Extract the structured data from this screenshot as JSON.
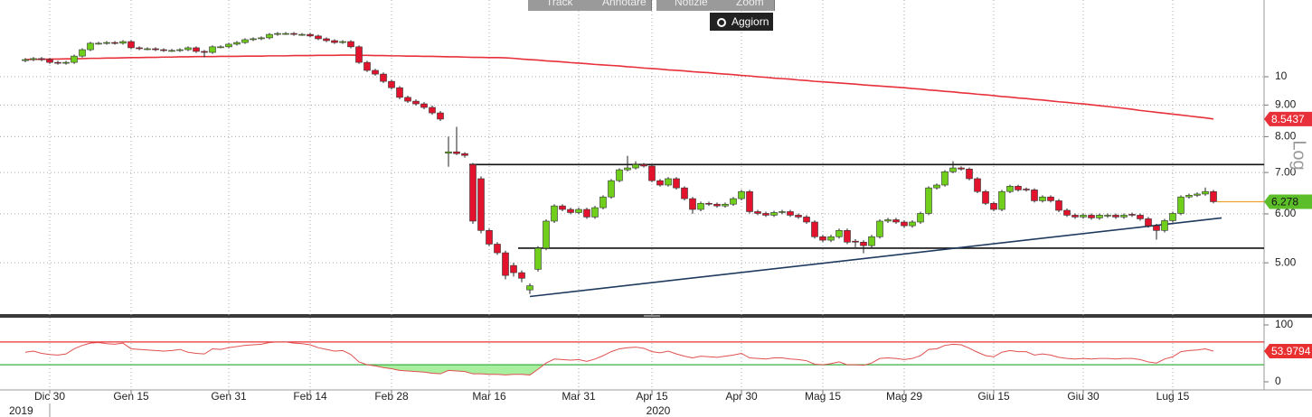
{
  "toolbar": {
    "buttons": [
      "Track",
      "Annotare",
      "Notizie",
      "Zoom"
    ],
    "refresh": "Aggiorn"
  },
  "scale_label": "Log",
  "chart_data": [
    {
      "type": "candlestick",
      "log_scale": true,
      "grid": true,
      "up_color": "#6fcf1a",
      "down_color": "#e3132d",
      "ylim": [
        4.13,
        13.31
      ],
      "yticks": [
        {
          "value": 5,
          "label": "5.00"
        },
        {
          "value": 6,
          "label": "6.00"
        },
        {
          "value": 7,
          "label": "7.00"
        },
        {
          "value": 8,
          "label": "8.00"
        },
        {
          "value": 9,
          "label": "9.00"
        },
        10
      ],
      "open": [
        10.62,
        10.66,
        10.7,
        10.66,
        10.55,
        10.52,
        10.55,
        10.8,
        11.06,
        11.33,
        11.33,
        11.36,
        11.33,
        11.4,
        11.14,
        11.1,
        11.1,
        11.06,
        11.03,
        11.03,
        11.06,
        11.14,
        10.99,
        10.95,
        11.18,
        11.18,
        11.29,
        11.36,
        11.48,
        11.52,
        11.56,
        11.71,
        11.75,
        11.75,
        11.71,
        11.71,
        11.64,
        11.52,
        11.44,
        11.36,
        11.4,
        11.18,
        10.55,
        10.24,
        10.1,
        9.83,
        9.6,
        9.26,
        9.13,
        9.04,
        8.92,
        8.74,
        7.52,
        7.56,
        7.51,
        7.21,
        6.84,
        5.64,
        5.36,
        5.19,
        4.95,
        4.82,
        4.52,
        4.88,
        5.28,
        5.84,
        6.18,
        6.1,
        6.03,
        6.1,
        5.93,
        6.14,
        6.39,
        6.79,
        7.07,
        7.12,
        7.21,
        7.17,
        6.79,
        6.68,
        6.84,
        6.61,
        6.35,
        6.1,
        6.24,
        6.22,
        6.18,
        6.22,
        6.35,
        6.52,
        6.05,
        6.01,
        5.97,
        6.03,
        6.05,
        5.97,
        5.93,
        5.82,
        5.51,
        5.44,
        5.51,
        5.64,
        5.42,
        5.4,
        5.33,
        5.51,
        5.84,
        5.87,
        5.82,
        5.74,
        5.82,
        6.01,
        6.61,
        6.68,
        7.02,
        7.12,
        7.09,
        6.84,
        6.52,
        6.24,
        6.1,
        6.52,
        6.65,
        6.58,
        6.56,
        6.3,
        6.39,
        6.3,
        6.08,
        5.97,
        5.93,
        5.97,
        5.91,
        5.95,
        5.97,
        5.93,
        5.99,
        5.97,
        5.89,
        5.74,
        5.64,
        5.85,
        6.01,
        6.39,
        6.43,
        6.46,
        6.52
      ],
      "high": [
        10.72,
        10.76,
        10.76,
        10.72,
        10.61,
        10.61,
        10.86,
        11.12,
        11.39,
        11.39,
        11.42,
        11.42,
        11.46,
        11.46,
        11.2,
        11.16,
        11.16,
        11.12,
        11.09,
        11.12,
        11.2,
        11.2,
        11.05,
        11.24,
        11.24,
        11.35,
        11.42,
        11.54,
        11.58,
        11.62,
        11.77,
        11.81,
        11.81,
        11.81,
        11.77,
        11.77,
        11.7,
        11.58,
        11.5,
        11.46,
        11.46,
        11.24,
        10.61,
        10.3,
        10.16,
        9.89,
        9.66,
        9.32,
        9.19,
        9.1,
        8.98,
        8.8,
        8.0,
        8.3,
        7.55,
        7.25,
        6.9,
        5.68,
        5.4,
        5.23,
        5.0,
        4.86,
        4.63,
        5.32,
        5.88,
        6.22,
        6.22,
        6.14,
        6.14,
        6.14,
        6.18,
        6.43,
        6.83,
        7.11,
        7.45,
        7.3,
        7.25,
        7.21,
        6.83,
        6.88,
        6.88,
        6.65,
        6.39,
        6.28,
        6.28,
        6.26,
        6.26,
        6.39,
        6.56,
        6.56,
        6.09,
        6.05,
        6.07,
        6.09,
        6.09,
        6.01,
        5.97,
        5.86,
        5.55,
        5.55,
        5.68,
        5.68,
        5.46,
        5.44,
        5.55,
        5.88,
        5.91,
        5.91,
        5.86,
        5.86,
        6.05,
        6.65,
        6.72,
        7.06,
        7.3,
        7.16,
        7.13,
        6.88,
        6.56,
        6.28,
        6.56,
        6.69,
        6.69,
        6.62,
        6.6,
        6.43,
        6.43,
        6.34,
        6.12,
        6.01,
        6.01,
        6.01,
        6.01,
        6.01,
        6.01,
        6.01,
        6.03,
        6.01,
        5.93,
        5.78,
        5.89,
        6.05,
        6.43,
        6.47,
        6.5,
        6.62,
        6.56
      ],
      "low": [
        10.56,
        10.6,
        10.6,
        10.49,
        10.46,
        10.46,
        10.49,
        10.74,
        11.0,
        11.27,
        11.27,
        11.27,
        11.27,
        11.08,
        11.04,
        11.04,
        11.0,
        10.97,
        10.97,
        10.97,
        11.0,
        10.93,
        10.75,
        10.89,
        11.12,
        11.12,
        11.23,
        11.3,
        11.42,
        11.46,
        11.5,
        11.65,
        11.69,
        11.65,
        11.65,
        11.58,
        11.46,
        11.38,
        11.3,
        11.3,
        11.12,
        10.49,
        10.18,
        10.04,
        9.77,
        9.54,
        9.2,
        9.07,
        8.98,
        8.86,
        8.68,
        8.48,
        7.15,
        7.47,
        7.4,
        5.78,
        5.58,
        5.32,
        5.15,
        4.7,
        4.75,
        4.65,
        4.45,
        4.84,
        5.24,
        5.8,
        6.06,
        5.99,
        5.99,
        5.89,
        5.89,
        6.1,
        6.35,
        6.75,
        7.03,
        7.08,
        7.13,
        6.75,
        6.64,
        6.64,
        6.57,
        6.31,
        6.0,
        6.06,
        6.18,
        6.14,
        6.14,
        6.18,
        6.31,
        6.01,
        5.97,
        5.93,
        5.93,
        5.99,
        5.93,
        5.89,
        5.78,
        5.47,
        5.4,
        5.4,
        5.47,
        5.36,
        5.3,
        5.18,
        5.29,
        5.47,
        5.8,
        5.78,
        5.7,
        5.7,
        5.78,
        5.97,
        6.57,
        6.64,
        6.98,
        7.05,
        6.8,
        6.48,
        6.2,
        6.06,
        6.06,
        6.48,
        6.52,
        6.52,
        6.26,
        6.26,
        6.26,
        6.04,
        5.93,
        5.89,
        5.89,
        5.87,
        5.87,
        5.91,
        5.89,
        5.89,
        5.93,
        5.85,
        5.7,
        5.45,
        5.6,
        5.81,
        5.97,
        6.35,
        6.39,
        6.42,
        6.24
      ],
      "close": [
        10.66,
        10.7,
        10.66,
        10.55,
        10.52,
        10.55,
        10.8,
        11.06,
        11.33,
        11.33,
        11.36,
        11.33,
        11.4,
        11.14,
        11.1,
        11.1,
        11.06,
        11.03,
        11.03,
        11.06,
        11.14,
        10.99,
        10.95,
        11.18,
        11.18,
        11.29,
        11.36,
        11.48,
        11.52,
        11.56,
        11.71,
        11.75,
        11.75,
        11.71,
        11.71,
        11.64,
        11.52,
        11.44,
        11.36,
        11.4,
        11.18,
        10.55,
        10.24,
        10.1,
        9.83,
        9.6,
        9.26,
        9.13,
        9.04,
        8.92,
        8.74,
        8.54,
        7.56,
        7.51,
        7.46,
        5.84,
        5.64,
        5.36,
        5.19,
        4.77,
        4.82,
        4.72,
        4.59,
        5.28,
        5.84,
        6.18,
        6.1,
        6.03,
        6.1,
        5.93,
        6.14,
        6.39,
        6.79,
        7.07,
        7.12,
        7.21,
        7.17,
        6.79,
        6.68,
        6.84,
        6.61,
        6.35,
        6.1,
        6.24,
        6.22,
        6.18,
        6.22,
        6.35,
        6.52,
        6.05,
        6.01,
        5.97,
        6.03,
        6.05,
        5.97,
        5.93,
        5.82,
        5.51,
        5.44,
        5.51,
        5.64,
        5.4,
        5.4,
        5.33,
        5.51,
        5.84,
        5.87,
        5.82,
        5.74,
        5.82,
        6.01,
        6.61,
        6.68,
        7.02,
        7.12,
        7.09,
        6.84,
        6.52,
        6.24,
        6.1,
        6.52,
        6.65,
        6.56,
        6.56,
        6.3,
        6.39,
        6.3,
        6.08,
        5.97,
        5.93,
        5.97,
        5.91,
        5.97,
        5.97,
        5.93,
        5.97,
        5.97,
        5.89,
        5.74,
        5.64,
        5.85,
        6.01,
        6.39,
        6.43,
        6.46,
        6.52,
        6.278
      ],
      "last_color": "#5cbf2a",
      "last_line_color": "#f0a030",
      "moving_average": {
        "color": "#e8303a",
        "values": [
          10.66,
          10.67,
          10.67,
          10.68,
          10.68,
          10.69,
          10.69,
          10.7,
          10.71,
          10.71,
          10.72,
          10.72,
          10.73,
          10.74,
          10.74,
          10.75,
          10.75,
          10.76,
          10.76,
          10.77,
          10.77,
          10.78,
          10.78,
          10.78,
          10.79,
          10.79,
          10.79,
          10.8,
          10.8,
          10.8,
          10.81,
          10.81,
          10.81,
          10.82,
          10.82,
          10.82,
          10.83,
          10.83,
          10.83,
          10.84,
          10.84,
          10.83,
          10.83,
          10.82,
          10.82,
          10.81,
          10.81,
          10.8,
          10.8,
          10.79,
          10.79,
          10.78,
          10.77,
          10.77,
          10.76,
          10.75,
          10.75,
          10.74,
          10.74,
          10.73,
          10.71,
          10.68,
          10.66,
          10.64,
          10.61,
          10.59,
          10.57,
          10.54,
          10.52,
          10.5,
          10.47,
          10.45,
          10.43,
          10.41,
          10.38,
          10.36,
          10.33,
          10.31,
          10.29,
          10.26,
          10.24,
          10.22,
          10.19,
          10.17,
          10.15,
          10.12,
          10.1,
          10.08,
          10.05,
          10.03,
          10.0,
          9.98,
          9.95,
          9.93,
          9.91,
          9.88,
          9.86,
          9.83,
          9.81,
          9.79,
          9.77,
          9.75,
          9.73,
          9.7,
          9.68,
          9.66,
          9.64,
          9.62,
          9.6,
          9.57,
          9.55,
          9.52,
          9.5,
          9.47,
          9.45,
          9.42,
          9.4,
          9.37,
          9.35,
          9.32,
          9.29,
          9.27,
          9.24,
          9.22,
          9.19,
          9.17,
          9.14,
          9.11,
          9.09,
          9.06,
          9.04,
          9.01,
          8.98,
          8.95,
          8.92,
          8.89,
          8.86,
          8.82,
          8.79,
          8.76,
          8.73,
          8.7,
          8.67,
          8.64,
          8.61,
          8.58,
          8.5437
        ]
      },
      "hlines": [
        {
          "value": 7.21,
          "from": 55,
          "color": "#111111"
        },
        {
          "value": 5.28,
          "from": 61,
          "color": "#111111"
        }
      ],
      "trendline": {
        "from": [
          62,
          4.41
        ],
        "to": [
          147,
          5.91
        ],
        "color": "#1f3a5f"
      }
    },
    {
      "type": "line",
      "color": "#e05050",
      "ylim": [
        -14.3,
        112.7
      ],
      "yticks": [
        0,
        100
      ],
      "upper": 70,
      "lower": 30,
      "upper_color": "#e83030",
      "lower_color": "#3cb043",
      "lower_fill": "#a8f0a0",
      "years": [
        "2019",
        "2020"
      ],
      "categories": [
        null,
        null,
        null,
        "Dic 30",
        null,
        null,
        null,
        null,
        null,
        null,
        null,
        null,
        null,
        "Gen 15",
        null,
        null,
        null,
        null,
        null,
        null,
        null,
        null,
        null,
        null,
        null,
        "Gen 31",
        null,
        null,
        null,
        null,
        null,
        null,
        null,
        null,
        null,
        "Feb 14",
        null,
        null,
        null,
        null,
        null,
        null,
        null,
        null,
        null,
        "Feb 28",
        null,
        null,
        null,
        null,
        null,
        null,
        null,
        null,
        null,
        null,
        null,
        "Mar 16",
        null,
        null,
        null,
        null,
        null,
        null,
        null,
        null,
        null,
        null,
        "Mar 31",
        null,
        null,
        null,
        null,
        null,
        null,
        null,
        null,
        "Apr 15",
        null,
        null,
        null,
        null,
        null,
        null,
        null,
        null,
        null,
        null,
        "Apr 30",
        null,
        null,
        null,
        null,
        null,
        null,
        null,
        null,
        null,
        "Mag 15",
        null,
        null,
        null,
        null,
        null,
        null,
        null,
        null,
        null,
        "Mag 29",
        null,
        null,
        null,
        null,
        null,
        null,
        null,
        null,
        null,
        null,
        "Giu 15",
        null,
        null,
        null,
        null,
        null,
        null,
        null,
        null,
        null,
        null,
        "Giu 30",
        null,
        null,
        null,
        null,
        null,
        null,
        null,
        null,
        null,
        null,
        "Lug 15",
        null,
        null,
        null,
        null,
        null
      ],
      "values": [
        52,
        54,
        50,
        48,
        47,
        49,
        58,
        64,
        68,
        69,
        67,
        66,
        68,
        58,
        57,
        56,
        55,
        54,
        55,
        57,
        52,
        50,
        49,
        58,
        57,
        60,
        62,
        64,
        65,
        66,
        69,
        70,
        70,
        68,
        67,
        65,
        60,
        57,
        54,
        55,
        48,
        35,
        30,
        28,
        25,
        23,
        20,
        19,
        18,
        17,
        15,
        14,
        20,
        19,
        18,
        14,
        14,
        13,
        13,
        12,
        13,
        13,
        12,
        22,
        33,
        40,
        39,
        38,
        39,
        36,
        40,
        46,
        53,
        58,
        60,
        61,
        59,
        53,
        51,
        54,
        49,
        45,
        42,
        45,
        44,
        43,
        45,
        47,
        50,
        42,
        41,
        40,
        42,
        42,
        40,
        39,
        37,
        31,
        30,
        32,
        35,
        30,
        30,
        29,
        33,
        41,
        42,
        41,
        39,
        41,
        46,
        57,
        58,
        64,
        66,
        65,
        59,
        52,
        46,
        44,
        52,
        55,
        53,
        53,
        47,
        49,
        47,
        43,
        41,
        40,
        41,
        40,
        41,
        41,
        40,
        41,
        41,
        39,
        35,
        33,
        40,
        44,
        53,
        55,
        56,
        58,
        53.9794
      ]
    }
  ]
}
